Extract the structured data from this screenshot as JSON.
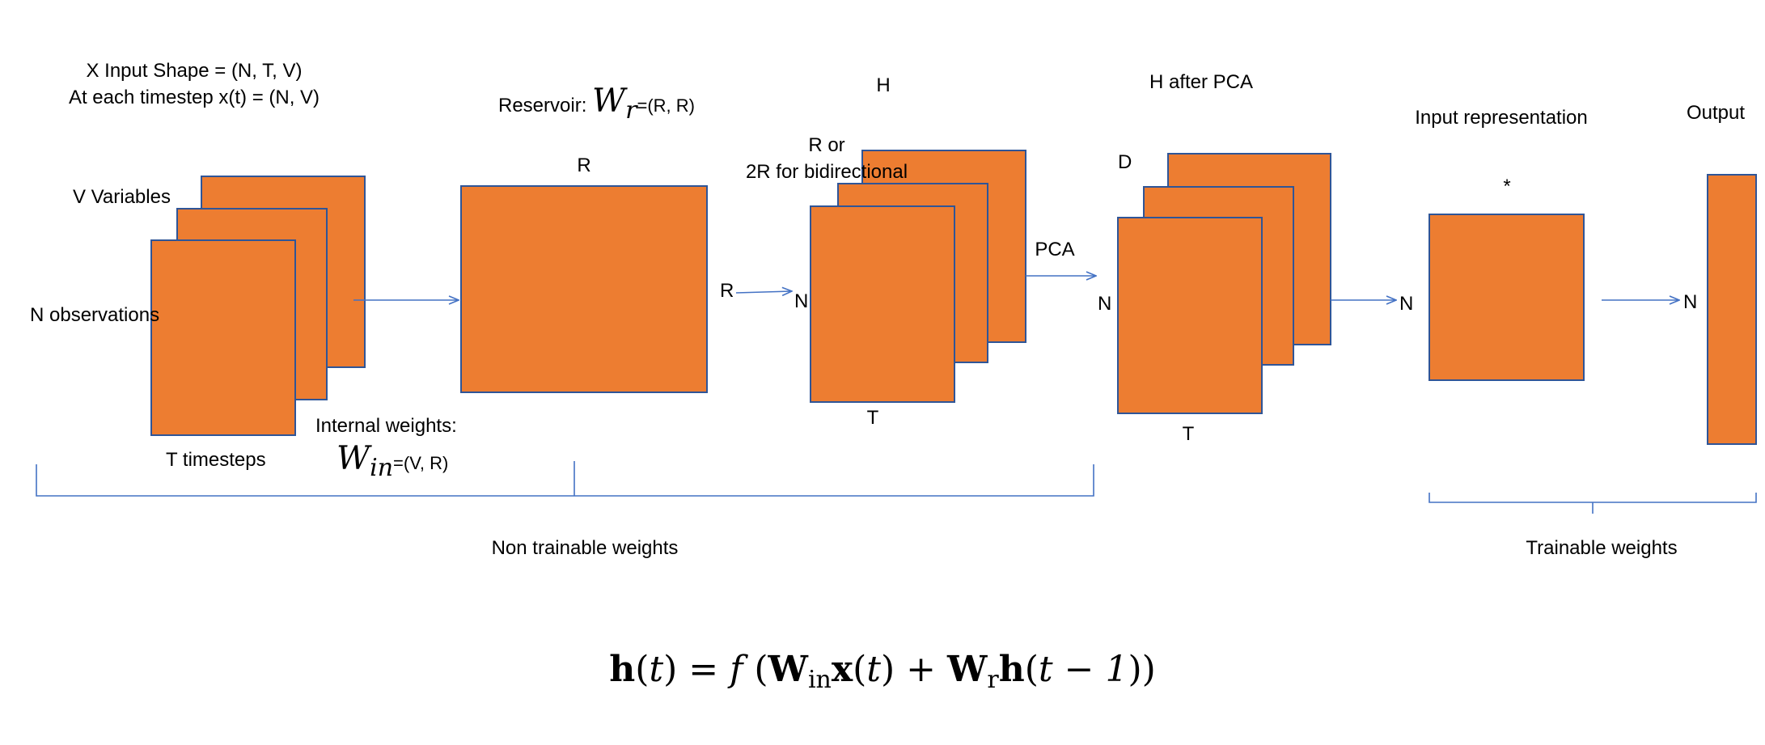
{
  "colors": {
    "box_fill": "#ED7D31",
    "box_stroke": "#2F5597",
    "arrow": "#4472C4",
    "bracket": "#4472C4"
  },
  "input": {
    "shape_line1": "X Input Shape = (N, T, V)",
    "shape_line2": "At each timestep x(t) = (N, V)",
    "variables_label": "V Variables",
    "observations_label": "N observations",
    "timesteps_label": "T timesteps"
  },
  "internal_weights": {
    "label": "Internal weights:",
    "symbol": "W",
    "subscript": "in",
    "shape": "=(V, R)"
  },
  "reservoir": {
    "prefix": "Reservoir: ",
    "symbol": "W",
    "subscript": "r",
    "shape": "=(R, R)",
    "dim_top": "R",
    "dim_right": "R"
  },
  "h_states": {
    "title": "H",
    "dim_line1": "R or",
    "dim_line2": "2R for bidirectional",
    "dim_left": "N",
    "dim_bottom": "T"
  },
  "pca": {
    "arrow_label": "PCA",
    "title": "H after PCA",
    "dim_top": "D",
    "dim_left": "N",
    "dim_bottom": "T"
  },
  "representation": {
    "title": "Input representation",
    "dim_top": "*",
    "dim_left": "N"
  },
  "output": {
    "title": "Output",
    "dim_left": "N"
  },
  "brackets": {
    "non_trainable": "Non trainable weights",
    "trainable": "Trainable weights"
  },
  "equation": {
    "h": "h",
    "t": "t",
    "f": "f",
    "W": "W",
    "in": "in",
    "x": "x",
    "r": "r",
    "t_minus_1": "t − 1"
  }
}
